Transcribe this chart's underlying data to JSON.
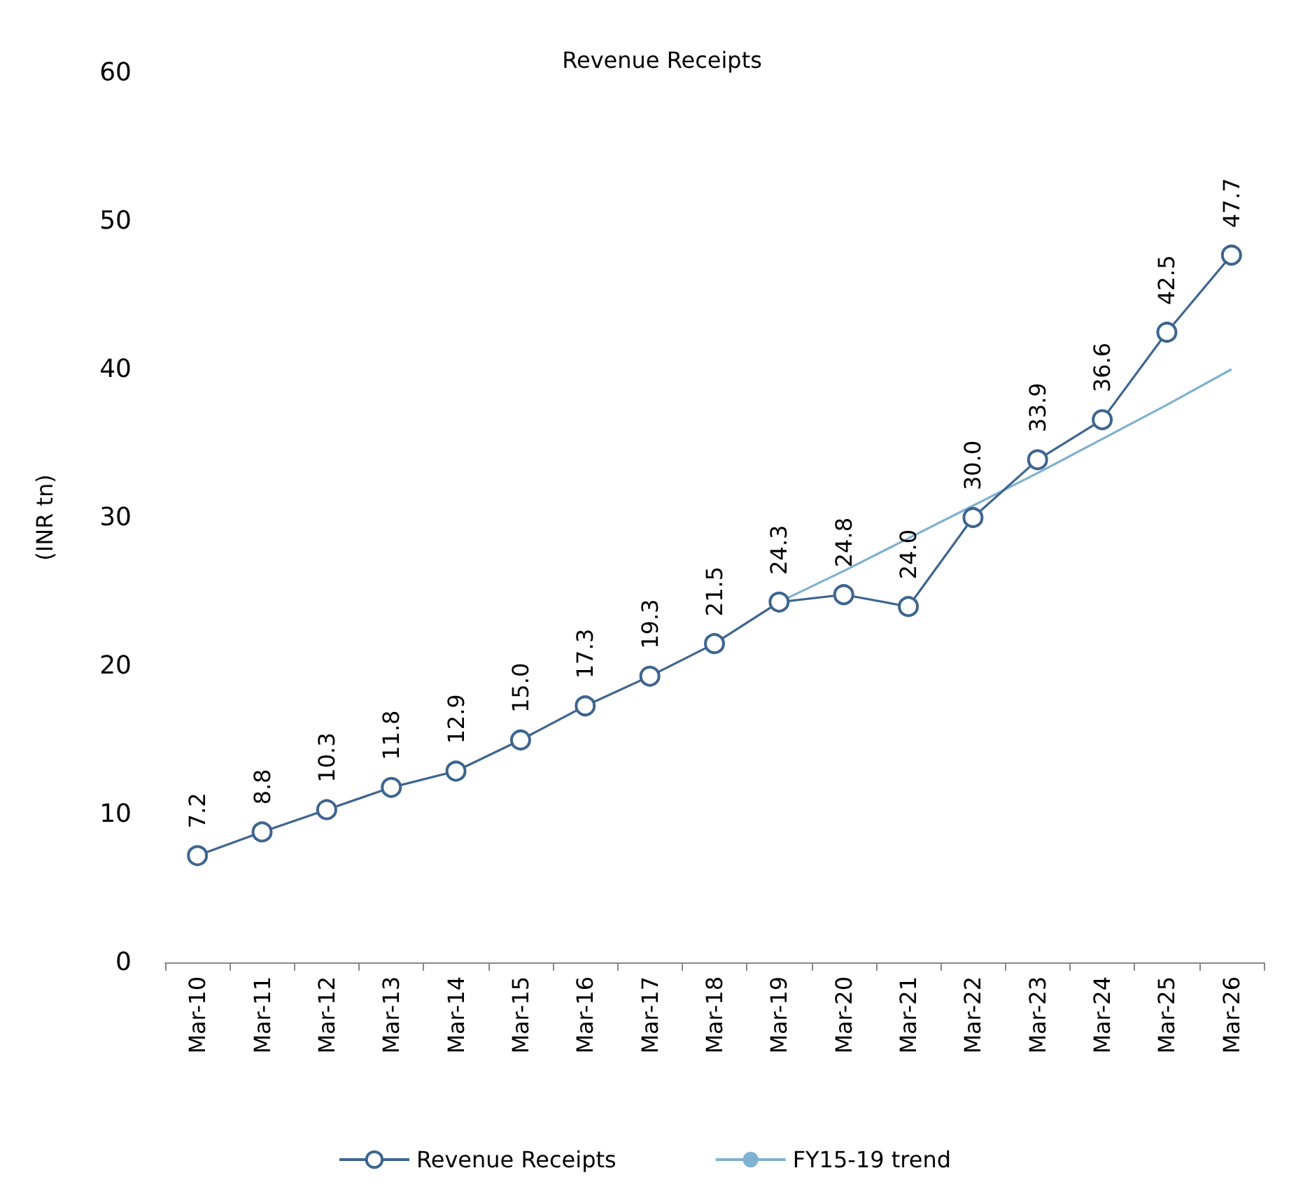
{
  "chart_data": {
    "type": "line",
    "title": "Revenue Receipts",
    "ylabel": "(INR tn)",
    "categories": [
      "Mar-10",
      "Mar-11",
      "Mar-12",
      "Mar-13",
      "Mar-14",
      "Mar-15",
      "Mar-16",
      "Mar-17",
      "Mar-18",
      "Mar-19",
      "Mar-20",
      "Mar-21",
      "Mar-22",
      "Mar-23",
      "Mar-24",
      "Mar-25",
      "Mar-26"
    ],
    "series": [
      {
        "name": "Revenue Receipts",
        "color": "#3d6590",
        "marker": "circle",
        "values": [
          7.2,
          8.8,
          10.3,
          11.8,
          12.9,
          15.0,
          17.3,
          19.3,
          21.5,
          24.3,
          24.8,
          24.0,
          30.0,
          33.9,
          36.6,
          42.5,
          47.7
        ],
        "value_labels": [
          "7.2",
          "8.8",
          "10.3",
          "11.8",
          "12.9",
          "15.0",
          "17.3",
          "19.3",
          "21.5",
          "24.3",
          "24.8",
          "24.0",
          "30.0",
          "33.9",
          "36.6",
          "42.5",
          "47.7"
        ]
      },
      {
        "name": "FY15-19 trend",
        "color": "#7fb1d0",
        "marker": "none",
        "x": [
          "Mar-19",
          "Mar-20",
          "Mar-21",
          "Mar-22",
          "Mar-23",
          "Mar-24",
          "Mar-25",
          "Mar-26"
        ],
        "values": [
          24.3,
          26.4,
          28.6,
          30.8,
          33.0,
          35.3,
          37.6,
          40.0
        ]
      }
    ],
    "ylim": [
      0,
      60
    ],
    "yticks": [
      0,
      10,
      20,
      30,
      40,
      50,
      60
    ],
    "grid": false,
    "legend": "bottom"
  }
}
